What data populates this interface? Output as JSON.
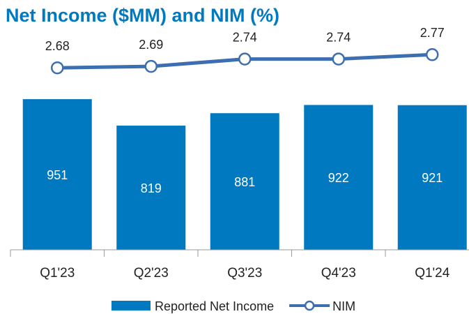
{
  "chart_data": {
    "type": "bar",
    "title": "Net Income ($MM) and NIM (%)",
    "categories": [
      "Q1'23",
      "Q2'23",
      "Q3'23",
      "Q4'23",
      "Q1'24"
    ],
    "series": [
      {
        "name": "Reported Net Income",
        "type": "bar",
        "color": "#0079c1",
        "values": [
          951,
          819,
          881,
          922,
          921
        ]
      },
      {
        "name": "NIM",
        "type": "line",
        "axis": "y2",
        "color": "#3d6fb0",
        "values": [
          2.68,
          2.69,
          2.74,
          2.74,
          2.77
        ]
      }
    ],
    "ylim": [
      200,
      1000
    ],
    "y2lim": [
      2.6,
      2.8
    ],
    "legend": "bottom"
  }
}
